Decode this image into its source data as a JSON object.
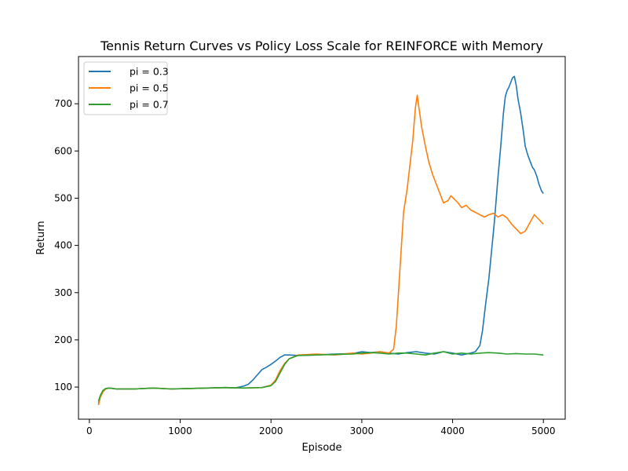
{
  "chart_data": {
    "type": "line",
    "title": "Tennis Return Curves vs Policy Loss Scale for REINFORCE with Memory",
    "xlabel": "Episode",
    "ylabel": "Return",
    "xlim": [
      -120,
      5240
    ],
    "ylim": [
      32,
      800
    ],
    "xticks": [
      0,
      1000,
      2000,
      3000,
      4000,
      5000
    ],
    "yticks": [
      100,
      200,
      300,
      400,
      500,
      600,
      700
    ],
    "grid": false,
    "legend": "top-left",
    "series": [
      {
        "name": "pi = 0.3",
        "color": "#1f77b4",
        "points": [
          [
            100,
            65
          ],
          [
            120,
            80
          ],
          [
            150,
            92
          ],
          [
            180,
            97
          ],
          [
            220,
            98
          ],
          [
            300,
            96
          ],
          [
            500,
            96
          ],
          [
            700,
            98
          ],
          [
            900,
            96
          ],
          [
            1100,
            97
          ],
          [
            1300,
            98
          ],
          [
            1500,
            99
          ],
          [
            1600,
            98
          ],
          [
            1700,
            102
          ],
          [
            1750,
            106
          ],
          [
            1800,
            115
          ],
          [
            1850,
            126
          ],
          [
            1900,
            137
          ],
          [
            1950,
            142
          ],
          [
            2000,
            148
          ],
          [
            2050,
            155
          ],
          [
            2100,
            163
          ],
          [
            2150,
            168
          ],
          [
            2200,
            168
          ],
          [
            2300,
            167
          ],
          [
            2500,
            168
          ],
          [
            2700,
            170
          ],
          [
            2900,
            171
          ],
          [
            3000,
            175
          ],
          [
            3100,
            173
          ],
          [
            3200,
            175
          ],
          [
            3300,
            172
          ],
          [
            3400,
            170
          ],
          [
            3500,
            173
          ],
          [
            3600,
            175
          ],
          [
            3700,
            172
          ],
          [
            3800,
            170
          ],
          [
            3900,
            175
          ],
          [
            4000,
            172
          ],
          [
            4100,
            168
          ],
          [
            4200,
            172
          ],
          [
            4250,
            175
          ],
          [
            4300,
            188
          ],
          [
            4330,
            220
          ],
          [
            4360,
            270
          ],
          [
            4400,
            330
          ],
          [
            4430,
            390
          ],
          [
            4460,
            450
          ],
          [
            4500,
            545
          ],
          [
            4530,
            610
          ],
          [
            4560,
            680
          ],
          [
            4580,
            715
          ],
          [
            4600,
            728
          ],
          [
            4620,
            735
          ],
          [
            4640,
            745
          ],
          [
            4660,
            755
          ],
          [
            4680,
            758
          ],
          [
            4700,
            740
          ],
          [
            4720,
            710
          ],
          [
            4750,
            680
          ],
          [
            4780,
            640
          ],
          [
            4800,
            610
          ],
          [
            4830,
            590
          ],
          [
            4850,
            580
          ],
          [
            4880,
            565
          ],
          [
            4900,
            560
          ],
          [
            4930,
            545
          ],
          [
            4950,
            530
          ],
          [
            4980,
            515
          ],
          [
            5000,
            510
          ]
        ]
      },
      {
        "name": "pi = 0.5",
        "color": "#ff7f0e",
        "points": [
          [
            100,
            62
          ],
          [
            120,
            78
          ],
          [
            150,
            90
          ],
          [
            180,
            96
          ],
          [
            220,
            98
          ],
          [
            300,
            96
          ],
          [
            500,
            96
          ],
          [
            700,
            98
          ],
          [
            900,
            96
          ],
          [
            1100,
            97
          ],
          [
            1300,
            98
          ],
          [
            1500,
            99
          ],
          [
            1700,
            98
          ],
          [
            1900,
            99
          ],
          [
            2000,
            104
          ],
          [
            2050,
            115
          ],
          [
            2100,
            135
          ],
          [
            2150,
            150
          ],
          [
            2200,
            160
          ],
          [
            2300,
            168
          ],
          [
            2500,
            170
          ],
          [
            2700,
            168
          ],
          [
            2900,
            172
          ],
          [
            3000,
            170
          ],
          [
            3100,
            172
          ],
          [
            3200,
            175
          ],
          [
            3300,
            172
          ],
          [
            3350,
            180
          ],
          [
            3380,
            230
          ],
          [
            3420,
            350
          ],
          [
            3460,
            470
          ],
          [
            3500,
            520
          ],
          [
            3530,
            570
          ],
          [
            3560,
            620
          ],
          [
            3590,
            690
          ],
          [
            3610,
            718
          ],
          [
            3630,
            690
          ],
          [
            3660,
            650
          ],
          [
            3700,
            610
          ],
          [
            3740,
            575
          ],
          [
            3780,
            550
          ],
          [
            3820,
            530
          ],
          [
            3860,
            510
          ],
          [
            3900,
            490
          ],
          [
            3950,
            495
          ],
          [
            3980,
            505
          ],
          [
            4020,
            498
          ],
          [
            4060,
            490
          ],
          [
            4100,
            480
          ],
          [
            4150,
            485
          ],
          [
            4200,
            475
          ],
          [
            4250,
            470
          ],
          [
            4300,
            465
          ],
          [
            4350,
            460
          ],
          [
            4400,
            465
          ],
          [
            4450,
            468
          ],
          [
            4500,
            460
          ],
          [
            4550,
            465
          ],
          [
            4600,
            458
          ],
          [
            4650,
            445
          ],
          [
            4700,
            435
          ],
          [
            4750,
            425
          ],
          [
            4800,
            430
          ],
          [
            4850,
            448
          ],
          [
            4900,
            465
          ],
          [
            4950,
            455
          ],
          [
            5000,
            445
          ]
        ]
      },
      {
        "name": "pi = 0.7",
        "color": "#2ca02c",
        "points": [
          [
            100,
            70
          ],
          [
            120,
            82
          ],
          [
            150,
            93
          ],
          [
            180,
            97
          ],
          [
            220,
            98
          ],
          [
            300,
            96
          ],
          [
            500,
            96
          ],
          [
            700,
            98
          ],
          [
            900,
            96
          ],
          [
            1100,
            97
          ],
          [
            1300,
            98
          ],
          [
            1500,
            99
          ],
          [
            1700,
            98
          ],
          [
            1900,
            99
          ],
          [
            2000,
            103
          ],
          [
            2050,
            112
          ],
          [
            2100,
            130
          ],
          [
            2150,
            148
          ],
          [
            2200,
            160
          ],
          [
            2300,
            167
          ],
          [
            2500,
            168
          ],
          [
            2700,
            169
          ],
          [
            2900,
            170
          ],
          [
            3000,
            172
          ],
          [
            3100,
            173
          ],
          [
            3200,
            172
          ],
          [
            3300,
            170
          ],
          [
            3400,
            172
          ],
          [
            3500,
            172
          ],
          [
            3600,
            170
          ],
          [
            3700,
            168
          ],
          [
            3800,
            172
          ],
          [
            3900,
            175
          ],
          [
            4000,
            170
          ],
          [
            4100,
            172
          ],
          [
            4200,
            170
          ],
          [
            4300,
            172
          ],
          [
            4400,
            173
          ],
          [
            4500,
            172
          ],
          [
            4600,
            170
          ],
          [
            4700,
            171
          ],
          [
            4800,
            170
          ],
          [
            4900,
            170
          ],
          [
            5000,
            168
          ]
        ]
      }
    ]
  }
}
